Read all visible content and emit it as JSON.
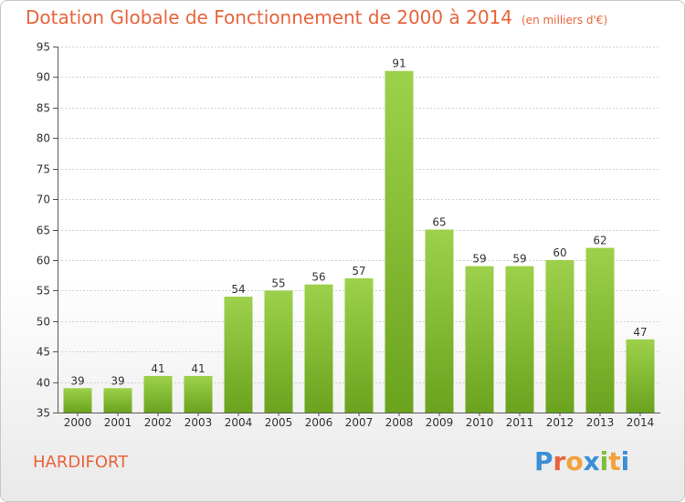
{
  "header": {
    "title": "Dotation Globale de Fonctionnement de 2000 à 2014",
    "unit": "(en milliers d'€)"
  },
  "footer": {
    "place": "HARDIFORT",
    "logo_letters": [
      "P",
      "r",
      "o",
      "x",
      "i",
      "t",
      "i"
    ],
    "logo_colors": [
      "#3a8fd6",
      "#e8643c",
      "#f2a23a",
      "#3a8fd6",
      "#7bbf3a",
      "#f2a23a",
      "#3a8fd6"
    ]
  },
  "colors": {
    "title": "#e8643c",
    "bar_light": "#9dd14b",
    "bar_dark": "#6ba31e",
    "grid": "#d0d0d0"
  },
  "chart_data": {
    "type": "bar",
    "title": "Dotation Globale de Fonctionnement de 2000 à 2014",
    "subtitle": "(en milliers d'€)",
    "categories": [
      "2000",
      "2001",
      "2002",
      "2003",
      "2004",
      "2005",
      "2006",
      "2007",
      "2008",
      "2009",
      "2010",
      "2011",
      "2012",
      "2013",
      "2014"
    ],
    "values": [
      39,
      39,
      41,
      41,
      54,
      55,
      56,
      57,
      91,
      65,
      59,
      59,
      60,
      62,
      47
    ],
    "ylim": [
      35,
      95
    ],
    "yticks": [
      35,
      40,
      45,
      50,
      55,
      60,
      65,
      70,
      75,
      80,
      85,
      90,
      95
    ],
    "grid": true,
    "xlabel": "",
    "ylabel": ""
  }
}
